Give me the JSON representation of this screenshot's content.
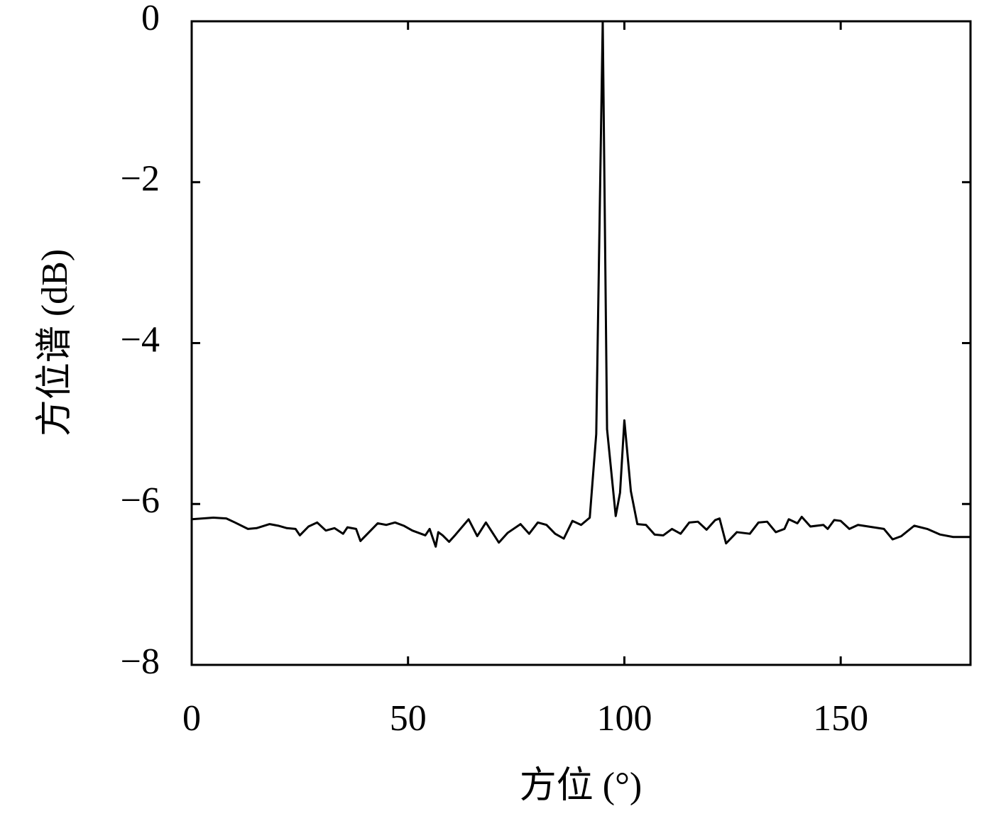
{
  "chart_data": {
    "type": "line",
    "xlabel": "方位 (°)",
    "ylabel": "方位谱 (dB)",
    "xlim": [
      0,
      180
    ],
    "xticks": [
      0,
      50,
      100,
      150
    ],
    "ylim": [
      -8,
      0
    ],
    "yticks": [
      0,
      {
        "value": -2,
        "label": "−2"
      },
      {
        "value": -4,
        "label": "−4"
      },
      {
        "value": -6,
        "label": "−6"
      },
      {
        "value": -8,
        "label": "−8"
      }
    ],
    "grid": false,
    "series": [
      {
        "color": "#000000",
        "x": [
          0,
          5,
          8,
          10,
          13,
          15,
          18,
          20,
          22,
          24,
          25,
          27,
          29,
          31,
          33,
          35,
          36,
          38,
          39,
          41,
          43,
          45,
          47,
          49,
          51,
          54,
          55,
          56.4,
          57,
          58,
          59.5,
          61,
          64,
          66,
          68,
          71,
          73,
          76,
          78,
          80,
          82,
          84,
          86,
          88,
          90,
          92,
          93.5,
          95,
          96,
          98,
          99,
          100,
          101.5,
          103,
          105,
          107,
          109,
          111,
          113,
          115,
          117,
          119,
          121,
          122,
          123.5,
          126,
          129,
          131,
          133,
          135,
          137,
          138,
          140,
          141,
          143,
          146,
          147,
          148.5,
          150,
          152,
          154,
          160,
          162,
          164,
          167,
          170,
          173,
          176,
          180
        ],
        "values": [
          -6.19,
          -6.17,
          -6.18,
          -6.23,
          -6.31,
          -6.3,
          -6.25,
          -6.27,
          -6.3,
          -6.31,
          -6.39,
          -6.28,
          -6.23,
          -6.33,
          -6.3,
          -6.37,
          -6.29,
          -6.31,
          -6.46,
          -6.35,
          -6.24,
          -6.26,
          -6.23,
          -6.27,
          -6.33,
          -6.39,
          -6.31,
          -6.53,
          -6.35,
          -6.39,
          -6.47,
          -6.38,
          -6.19,
          -6.4,
          -6.23,
          -6.48,
          -6.36,
          -6.25,
          -6.37,
          -6.23,
          -6.26,
          -6.37,
          -6.43,
          -6.21,
          -6.26,
          -6.17,
          -5.13,
          0,
          -5.07,
          -6.15,
          -5.86,
          -4.96,
          -5.84,
          -6.25,
          -6.26,
          -6.38,
          -6.39,
          -6.31,
          -6.37,
          -6.23,
          -6.22,
          -6.32,
          -6.2,
          -6.18,
          -6.49,
          -6.35,
          -6.37,
          -6.23,
          -6.22,
          -6.35,
          -6.31,
          -6.19,
          -6.24,
          -6.16,
          -6.28,
          -6.26,
          -6.31,
          -6.2,
          -6.21,
          -6.31,
          -6.26,
          -6.31,
          -6.44,
          -6.4,
          -6.27,
          -6.31,
          -6.38,
          -6.41,
          -6.41
        ]
      }
    ]
  }
}
